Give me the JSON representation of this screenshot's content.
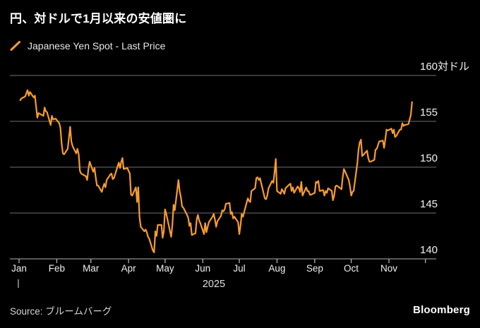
{
  "header": {
    "title": "円、対ドルで1月以来の安値圏に"
  },
  "legend": {
    "marker_icon": "orange-slash",
    "label": "Japanese Yen Spot - Last Price"
  },
  "footer": {
    "source": "Source: ブルームバーグ",
    "brand": "Bloomberg"
  },
  "chart_data": {
    "type": "line",
    "title": "円、対ドルで1月以来の安値圏に",
    "series_name": "Japanese Yen Spot - Last Price",
    "year_label": "2025",
    "unit_label": "対ドル",
    "x_labels": [
      "Jan",
      "Feb",
      "Mar",
      "Apr",
      "May",
      "Jun",
      "Jul",
      "Aug",
      "Sep",
      "Oct",
      "Nov"
    ],
    "x_label_doys": [
      1,
      32,
      60,
      91,
      121,
      152,
      182,
      213,
      244,
      274,
      305
    ],
    "x_extra_tick_doys": [
      335
    ],
    "y_ticks": [
      {
        "v": 160,
        "label": "160対ドル"
      },
      {
        "v": 155,
        "label": "155"
      },
      {
        "v": 150,
        "label": "150"
      },
      {
        "v": 145,
        "label": "145"
      },
      {
        "v": 140,
        "label": "140"
      }
    ],
    "ylim": [
      140,
      160
    ],
    "xlabel": "",
    "ylabel": "対ドル",
    "grid": "horizontal",
    "legend_position": "top-left",
    "colors": {
      "background": "#000000",
      "line": "#F89C2E",
      "grid": "#6f6f6f",
      "axis": "#b2b2b2"
    },
    "points": [
      [
        2,
        157.3
      ],
      [
        3,
        157.5
      ],
      [
        6,
        157.7
      ],
      [
        8,
        158.4
      ],
      [
        9,
        157.8
      ],
      [
        10,
        158.2
      ],
      [
        13,
        157.6
      ],
      [
        14,
        157.8
      ],
      [
        16,
        155.4
      ],
      [
        17,
        155.9
      ],
      [
        21,
        155.6
      ],
      [
        22,
        156.5
      ],
      [
        23,
        156.1
      ],
      [
        24,
        156.0
      ],
      [
        27,
        154.6
      ],
      [
        28,
        155.6
      ],
      [
        29,
        155.2
      ],
      [
        31,
        155.3
      ],
      [
        34,
        154.8
      ],
      [
        35,
        154.3
      ],
      [
        36,
        152.6
      ],
      [
        37,
        151.5
      ],
      [
        38,
        151.4
      ],
      [
        41,
        152.0
      ],
      [
        43,
        154.4
      ],
      [
        44,
        152.8
      ],
      [
        45,
        152.3
      ],
      [
        48,
        151.5
      ],
      [
        49,
        152.0
      ],
      [
        50,
        151.4
      ],
      [
        51,
        149.6
      ],
      [
        52,
        149.3
      ],
      [
        56,
        149.0
      ],
      [
        57,
        148.6
      ],
      [
        58,
        149.8
      ],
      [
        59,
        150.6
      ],
      [
        62,
        149.5
      ],
      [
        63,
        149.9
      ],
      [
        64,
        148.9
      ],
      [
        65,
        148.0
      ],
      [
        66,
        148.0
      ],
      [
        69,
        147.3
      ],
      [
        70,
        147.8
      ],
      [
        71,
        148.2
      ],
      [
        72,
        147.8
      ],
      [
        73,
        148.6
      ],
      [
        76,
        149.2
      ],
      [
        77,
        149.3
      ],
      [
        78,
        148.7
      ],
      [
        79,
        148.8
      ],
      [
        83,
        150.5
      ],
      [
        84,
        149.9
      ],
      [
        85,
        150.6
      ],
      [
        86,
        151.0
      ],
      [
        87,
        149.8
      ],
      [
        90,
        149.9
      ],
      [
        91,
        149.6
      ],
      [
        92,
        149.3
      ],
      [
        93,
        147.0
      ],
      [
        94,
        146.9
      ],
      [
        97,
        147.8
      ],
      [
        98,
        146.2
      ],
      [
        99,
        147.8
      ],
      [
        100,
        144.6
      ],
      [
        101,
        143.5
      ],
      [
        104,
        143.0
      ],
      [
        105,
        143.2
      ],
      [
        106,
        142.9
      ],
      [
        107,
        142.4
      ],
      [
        108,
        142.2
      ],
      [
        111,
        140.9
      ],
      [
        112,
        140.7
      ],
      [
        113,
        143.0
      ],
      [
        114,
        142.5
      ],
      [
        115,
        143.7
      ],
      [
        118,
        143.7
      ],
      [
        119,
        142.3
      ],
      [
        120,
        143.0
      ],
      [
        121,
        145.4
      ],
      [
        122,
        144.9
      ],
      [
        126,
        142.4
      ],
      [
        127,
        143.7
      ],
      [
        128,
        145.9
      ],
      [
        129,
        145.3
      ],
      [
        132,
        148.6
      ],
      [
        133,
        147.4
      ],
      [
        134,
        146.7
      ],
      [
        135,
        145.7
      ],
      [
        136,
        145.6
      ],
      [
        139,
        144.8
      ],
      [
        140,
        144.5
      ],
      [
        141,
        143.6
      ],
      [
        142,
        143.9
      ],
      [
        143,
        142.6
      ],
      [
        146,
        142.8
      ],
      [
        147,
        144.3
      ],
      [
        148,
        144.8
      ],
      [
        149,
        144.2
      ],
      [
        150,
        143.9
      ],
      [
        153,
        142.7
      ],
      [
        154,
        143.9
      ],
      [
        155,
        142.9
      ],
      [
        156,
        143.5
      ],
      [
        157,
        144.0
      ],
      [
        160,
        144.6
      ],
      [
        161,
        144.9
      ],
      [
        162,
        144.3
      ],
      [
        163,
        143.5
      ],
      [
        164,
        144.1
      ],
      [
        167,
        144.7
      ],
      [
        168,
        145.3
      ],
      [
        169,
        145.2
      ],
      [
        170,
        145.4
      ],
      [
        171,
        146.0
      ],
      [
        174,
        146.1
      ],
      [
        175,
        144.9
      ],
      [
        176,
        145.1
      ],
      [
        177,
        144.4
      ],
      [
        178,
        144.6
      ],
      [
        181,
        144.0
      ],
      [
        182,
        142.7
      ],
      [
        183,
        143.6
      ],
      [
        184,
        144.9
      ],
      [
        185,
        144.6
      ],
      [
        188,
        146.1
      ],
      [
        189,
        146.6
      ],
      [
        190,
        146.3
      ],
      [
        191,
        146.2
      ],
      [
        192,
        147.4
      ],
      [
        195,
        147.7
      ],
      [
        196,
        148.8
      ],
      [
        197,
        148.9
      ],
      [
        198,
        148.6
      ],
      [
        199,
        148.8
      ],
      [
        203,
        146.6
      ],
      [
        204,
        146.5
      ],
      [
        205,
        146.9
      ],
      [
        206,
        147.7
      ],
      [
        209,
        148.5
      ],
      [
        210,
        148.3
      ],
      [
        211,
        149.5
      ],
      [
        212,
        150.9
      ],
      [
        213,
        147.4
      ],
      [
        216,
        147.1
      ],
      [
        217,
        147.6
      ],
      [
        218,
        147.4
      ],
      [
        219,
        147.1
      ],
      [
        220,
        147.7
      ],
      [
        223,
        148.1
      ],
      [
        224,
        148.2
      ],
      [
        225,
        147.4
      ],
      [
        226,
        147.8
      ],
      [
        227,
        147.2
      ],
      [
        230,
        147.9
      ],
      [
        231,
        147.7
      ],
      [
        232,
        147.3
      ],
      [
        233,
        148.4
      ],
      [
        234,
        146.9
      ],
      [
        237,
        147.8
      ],
      [
        238,
        147.4
      ],
      [
        239,
        147.4
      ],
      [
        240,
        147.0
      ],
      [
        241,
        147.0
      ],
      [
        244,
        147.2
      ],
      [
        245,
        148.4
      ],
      [
        246,
        148.3
      ],
      [
        247,
        148.5
      ],
      [
        248,
        147.4
      ],
      [
        251,
        147.5
      ],
      [
        252,
        146.9
      ],
      [
        253,
        147.4
      ],
      [
        254,
        147.2
      ],
      [
        255,
        147.7
      ],
      [
        258,
        147.4
      ],
      [
        259,
        146.4
      ],
      [
        260,
        146.9
      ],
      [
        261,
        147.9
      ],
      [
        262,
        148.0
      ],
      [
        265,
        147.7
      ],
      [
        266,
        147.6
      ],
      [
        267,
        148.9
      ],
      [
        268,
        149.8
      ],
      [
        269,
        149.5
      ],
      [
        272,
        148.6
      ],
      [
        273,
        147.9
      ],
      [
        274,
        146.9
      ],
      [
        275,
        147.3
      ],
      [
        276,
        147.4
      ],
      [
        279,
        150.4
      ],
      [
        280,
        151.9
      ],
      [
        281,
        152.7
      ],
      [
        282,
        153.0
      ],
      [
        283,
        151.2
      ],
      [
        287,
        151.8
      ],
      [
        288,
        151.0
      ],
      [
        289,
        150.6
      ],
      [
        290,
        150.6
      ],
      [
        293,
        150.8
      ],
      [
        294,
        151.9
      ],
      [
        295,
        152.0
      ],
      [
        296,
        152.4
      ],
      [
        297,
        152.8
      ],
      [
        300,
        152.9
      ],
      [
        301,
        152.1
      ],
      [
        302,
        153.0
      ],
      [
        303,
        154.1
      ],
      [
        304,
        154.0
      ],
      [
        307,
        154.2
      ],
      [
        308,
        153.7
      ],
      [
        309,
        154.1
      ],
      [
        310,
        153.3
      ],
      [
        311,
        153.4
      ],
      [
        314,
        154.1
      ],
      [
        315,
        154.1
      ],
      [
        316,
        154.8
      ],
      [
        317,
        154.5
      ],
      [
        318,
        154.6
      ],
      [
        321,
        154.7
      ],
      [
        322,
        155.2
      ],
      [
        323,
        155.7
      ],
      [
        324,
        157.1
      ]
    ]
  }
}
